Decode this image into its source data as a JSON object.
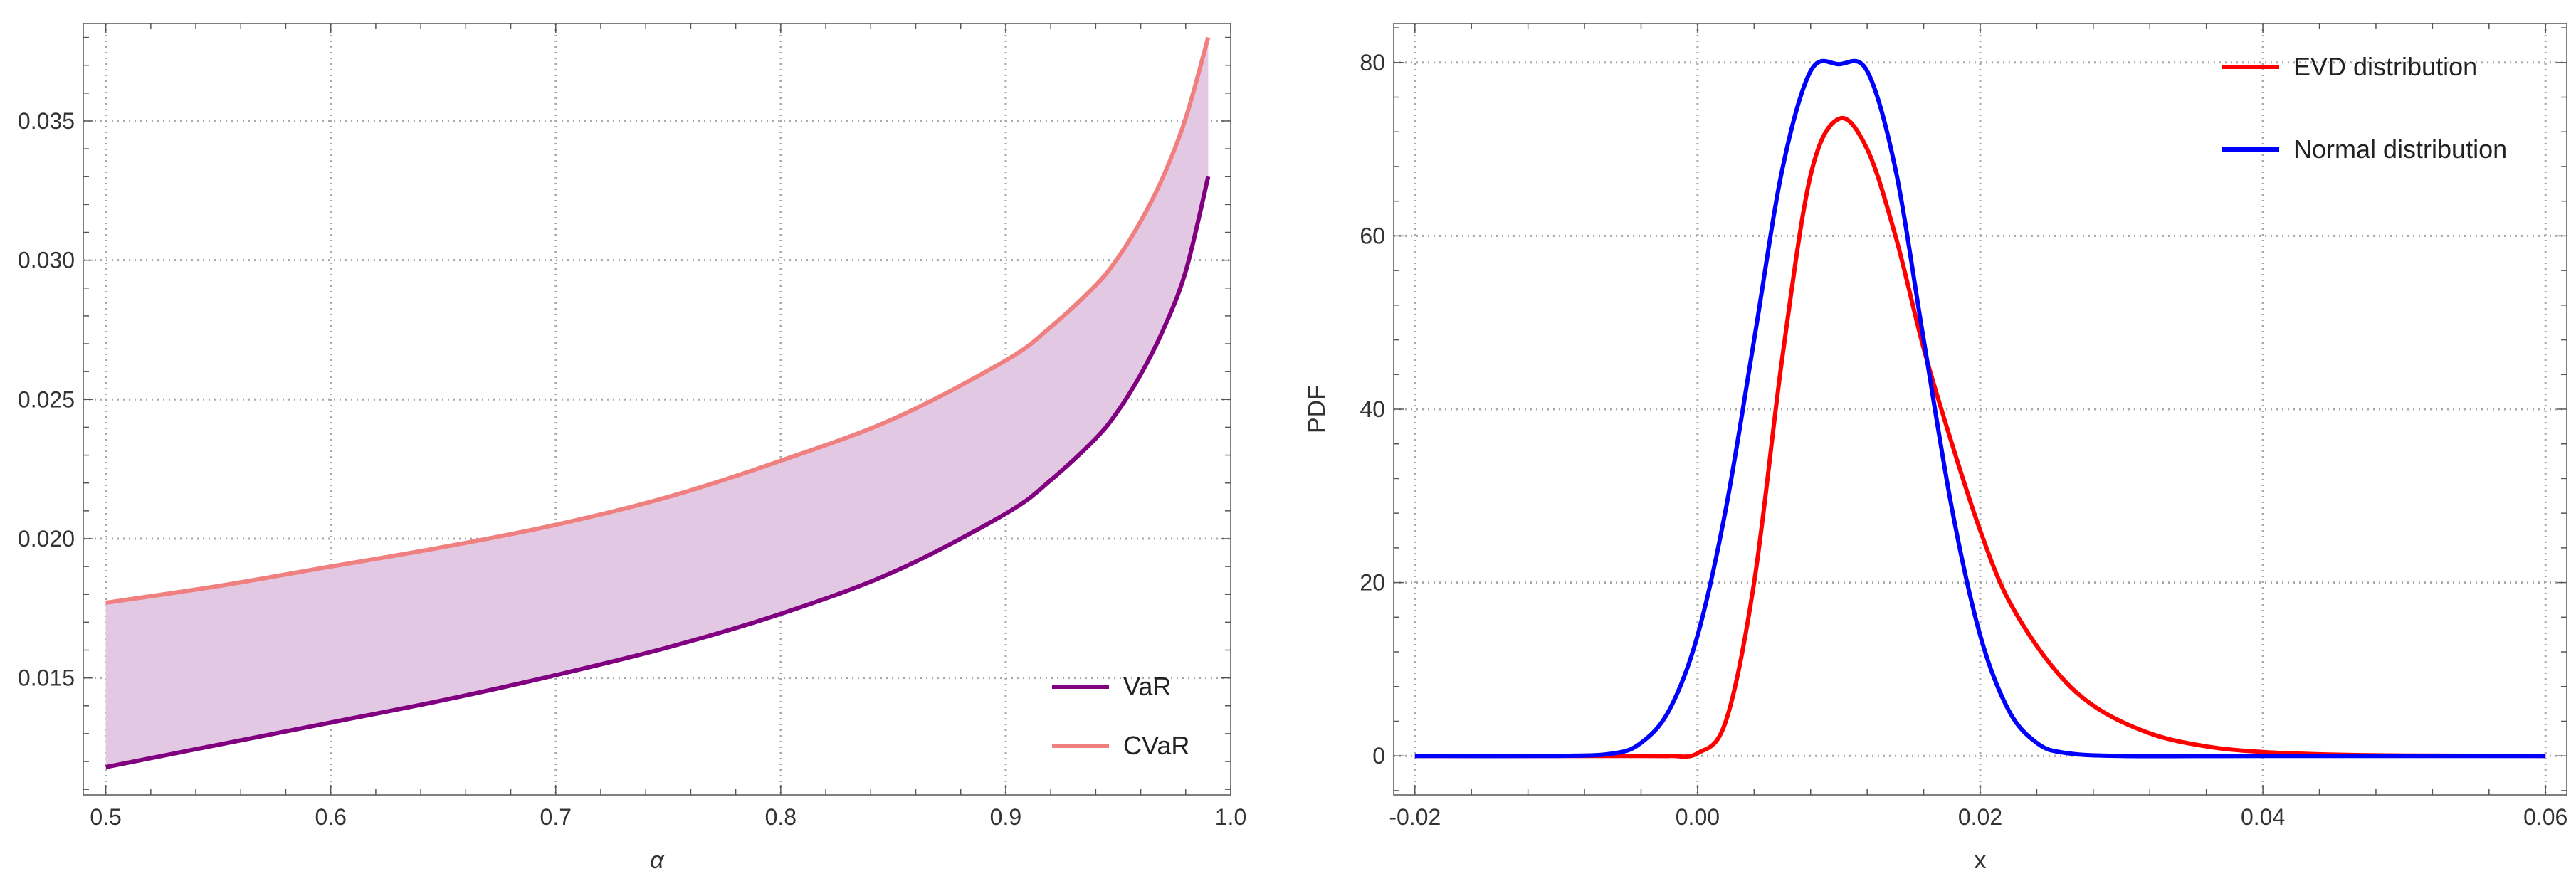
{
  "chart_data": [
    {
      "type": "area",
      "title": "",
      "xlabel": "α",
      "ylabel": "",
      "xlim": [
        0.49,
        1.0
      ],
      "ylim": [
        0.0108,
        0.0385
      ],
      "grid": true,
      "legend_position": "bottom-right",
      "x_ticks": [
        "0.5",
        "0.6",
        "0.7",
        "0.8",
        "0.9",
        "1.0"
      ],
      "y_ticks": [
        "0.015",
        "0.020",
        "0.025",
        "0.030",
        "0.035"
      ],
      "x_tick_values": [
        0.5,
        0.6,
        0.7,
        0.8,
        0.9,
        1.0
      ],
      "y_tick_values": [
        0.015,
        0.02,
        0.025,
        0.03,
        0.035
      ],
      "fill_between": "VaR and CVaR",
      "series": [
        {
          "name": "VaR",
          "color": "#800080",
          "x": [
            0.5,
            0.55,
            0.6,
            0.65,
            0.7,
            0.75,
            0.8,
            0.85,
            0.9,
            0.92,
            0.94,
            0.95,
            0.96,
            0.97,
            0.98,
            0.99
          ],
          "values": [
            0.0118,
            0.0126,
            0.0134,
            0.0142,
            0.0151,
            0.0161,
            0.0173,
            0.0188,
            0.0209,
            0.0221,
            0.0236,
            0.0246,
            0.0259,
            0.0275,
            0.0296,
            0.033
          ]
        },
        {
          "name": "CVaR",
          "color": "#f08080",
          "x": [
            0.5,
            0.55,
            0.6,
            0.65,
            0.7,
            0.75,
            0.8,
            0.85,
            0.9,
            0.92,
            0.94,
            0.95,
            0.96,
            0.97,
            0.98,
            0.99
          ],
          "values": [
            0.0177,
            0.0183,
            0.019,
            0.0197,
            0.0205,
            0.0215,
            0.0228,
            0.0243,
            0.0264,
            0.0276,
            0.0291,
            0.0301,
            0.0314,
            0.033,
            0.0351,
            0.038
          ]
        }
      ]
    },
    {
      "type": "line",
      "title": "",
      "xlabel": "x",
      "ylabel": "PDF",
      "xlim": [
        -0.0215,
        0.0615
      ],
      "ylim": [
        -4.5,
        84.5
      ],
      "grid": true,
      "legend_position": "top-right",
      "x_ticks": [
        "-0.02",
        "0.00",
        "0.02",
        "0.04",
        "0.06"
      ],
      "y_ticks": [
        "0",
        "20",
        "40",
        "60",
        "80"
      ],
      "x_tick_values": [
        -0.02,
        0.0,
        0.02,
        0.04,
        0.06
      ],
      "y_tick_values": [
        0,
        20,
        40,
        60,
        80
      ],
      "series": [
        {
          "name": "EVD distribution",
          "color": "#ff0000",
          "x": [
            -0.02,
            -0.004,
            -0.002,
            0.0,
            0.002,
            0.004,
            0.006,
            0.008,
            0.01,
            0.012,
            0.014,
            0.016,
            0.018,
            0.02,
            0.022,
            0.025,
            0.028,
            0.032,
            0.036,
            0.04,
            0.045,
            0.05,
            0.06
          ],
          "values": [
            0.0,
            0.0,
            0.0,
            0.3,
            4.0,
            20.0,
            46.0,
            67.0,
            73.5,
            70.0,
            60.0,
            47.0,
            36.0,
            26.0,
            18.0,
            10.5,
            5.8,
            2.6,
            1.1,
            0.45,
            0.15,
            0.04,
            0.0
          ]
        },
        {
          "name": "Normal distribution",
          "color": "#0000ff",
          "x": [
            -0.02,
            -0.01,
            -0.006,
            -0.004,
            -0.002,
            0.0,
            0.002,
            0.004,
            0.006,
            0.008,
            0.01,
            0.012,
            0.014,
            0.016,
            0.018,
            0.02,
            0.022,
            0.024,
            0.026,
            0.03,
            0.04,
            0.06
          ],
          "values": [
            0.0,
            0.0,
            0.27,
            1.5,
            5.3,
            13.9,
            28.5,
            48.0,
            67.7,
            79.0,
            79.8,
            79.0,
            67.7,
            48.0,
            28.5,
            13.9,
            5.3,
            1.5,
            0.35,
            0.0,
            0.0,
            0.0
          ]
        }
      ]
    }
  ]
}
